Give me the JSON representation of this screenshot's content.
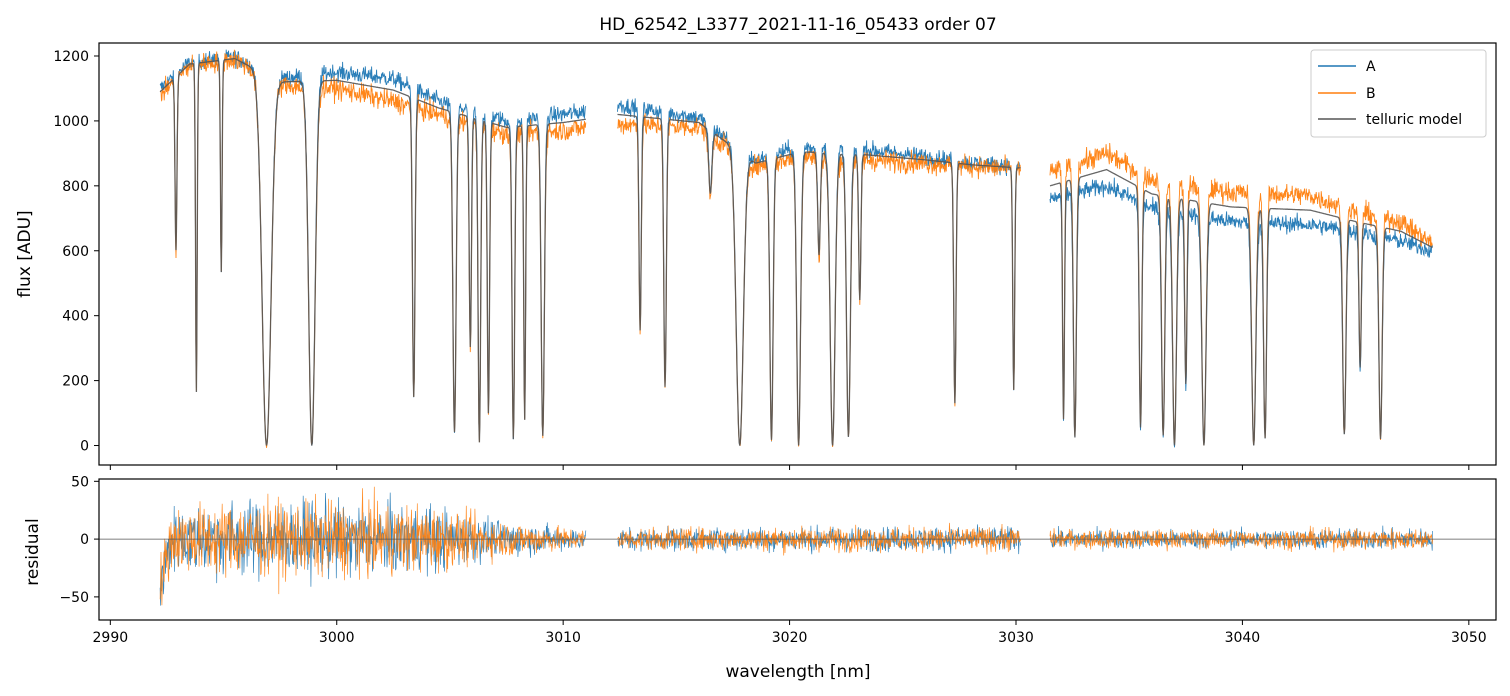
{
  "title": "HD_62542_L3377_2021-11-16_05433  order 07",
  "colors": {
    "A": "#1f77b4",
    "B": "#ff7f0e",
    "model": "#555555"
  },
  "chart_data": [
    {
      "type": "line",
      "panel": "flux",
      "title": "HD_62542_L3377_2021-11-16_05433  order 07",
      "xlabel": "",
      "ylabel": "flux [ADU]",
      "xlim": [
        2989.5,
        3051.2
      ],
      "ylim": [
        -60,
        1240
      ],
      "xticks": [
        2990,
        3000,
        3010,
        3020,
        3030,
        3040,
        3050
      ],
      "yticks": [
        0,
        200,
        400,
        600,
        800,
        1000,
        1200
      ],
      "grid": false,
      "legend": {
        "position": "top-right",
        "entries": [
          "A",
          "B",
          "telluric model"
        ]
      },
      "segments": [
        [
          2992.2,
          3011.0
        ],
        [
          3012.4,
          3030.2
        ],
        [
          3031.5,
          3048.4
        ]
      ],
      "series": [
        {
          "name": "A",
          "color": "#1f77b4",
          "continuum": [
            [
              2992.2,
              1100
            ],
            [
              2993.5,
              1180
            ],
            [
              2995.5,
              1195
            ],
            [
              2997.5,
              1130
            ],
            [
              3000,
              1150
            ],
            [
              3002.5,
              1130
            ],
            [
              3004.5,
              1060
            ],
            [
              3007.5,
              1000
            ],
            [
              3010,
              1020
            ],
            [
              3011,
              1030
            ],
            [
              3012.4,
              1050
            ],
            [
              3016,
              1010
            ],
            [
              3018.5,
              880
            ],
            [
              3020.5,
              920
            ],
            [
              3023.5,
              910
            ],
            [
              3026,
              890
            ],
            [
              3028,
              870
            ],
            [
              3030.2,
              860
            ],
            [
              3031.5,
              760
            ],
            [
              3034,
              800
            ],
            [
              3036,
              730
            ],
            [
              3039.5,
              690
            ],
            [
              3043,
              680
            ],
            [
              3045,
              660
            ],
            [
              3047,
              630
            ],
            [
              3048.4,
              600
            ]
          ]
        },
        {
          "name": "B",
          "color": "#ff7f0e",
          "continuum": [
            [
              2992.2,
              1080
            ],
            [
              2993.5,
              1170
            ],
            [
              2995.5,
              1190
            ],
            [
              2997.5,
              1110
            ],
            [
              3000,
              1100
            ],
            [
              3002.5,
              1060
            ],
            [
              3004.5,
              1020
            ],
            [
              3007.5,
              960
            ],
            [
              3010,
              970
            ],
            [
              3011,
              980
            ],
            [
              3012.4,
              990
            ],
            [
              3016,
              980
            ],
            [
              3018.5,
              860
            ],
            [
              3020.5,
              890
            ],
            [
              3023.5,
              880
            ],
            [
              3026,
              870
            ],
            [
              3028,
              860
            ],
            [
              3030.2,
              850
            ],
            [
              3031.5,
              840
            ],
            [
              3034,
              900
            ],
            [
              3036,
              820
            ],
            [
              3039.5,
              780
            ],
            [
              3043,
              770
            ],
            [
              3045,
              720
            ],
            [
              3047,
              690
            ],
            [
              3048.4,
              620
            ]
          ]
        },
        {
          "name": "telluric model",
          "color": "#555555",
          "continuum": [
            [
              2992.2,
              1090
            ],
            [
              2993.5,
              1175
            ],
            [
              2995.5,
              1192
            ],
            [
              2997.5,
              1120
            ],
            [
              3000,
              1125
            ],
            [
              3002.5,
              1095
            ],
            [
              3004.5,
              1040
            ],
            [
              3007.5,
              980
            ],
            [
              3010,
              995
            ],
            [
              3011,
              1005
            ],
            [
              3012.4,
              1020
            ],
            [
              3016,
              995
            ],
            [
              3018.5,
              870
            ],
            [
              3020.5,
              905
            ],
            [
              3023.5,
              895
            ],
            [
              3026,
              880
            ],
            [
              3028,
              865
            ],
            [
              3030.2,
              855
            ],
            [
              3031.5,
              800
            ],
            [
              3034,
              850
            ],
            [
              3036,
              775
            ],
            [
              3039.5,
              735
            ],
            [
              3043,
              725
            ],
            [
              3045,
              690
            ],
            [
              3047,
              660
            ],
            [
              3048.4,
              610
            ]
          ]
        }
      ],
      "absorption_lines": [
        {
          "x": 2992.9,
          "depth": 0.47,
          "w": 0.06
        },
        {
          "x": 2993.8,
          "depth": 0.86,
          "w": 0.05
        },
        {
          "x": 2994.9,
          "depth": 0.55,
          "w": 0.05
        },
        {
          "x": 2996.9,
          "depth": 1.0,
          "w": 0.28
        },
        {
          "x": 2998.9,
          "depth": 1.0,
          "w": 0.2
        },
        {
          "x": 3003.4,
          "depth": 0.86,
          "w": 0.08
        },
        {
          "x": 3005.2,
          "depth": 0.96,
          "w": 0.1
        },
        {
          "x": 3005.9,
          "depth": 0.7,
          "w": 0.07
        },
        {
          "x": 3006.3,
          "depth": 0.99,
          "w": 0.08
        },
        {
          "x": 3006.7,
          "depth": 0.9,
          "w": 0.07
        },
        {
          "x": 3007.8,
          "depth": 0.98,
          "w": 0.08
        },
        {
          "x": 3008.3,
          "depth": 0.92,
          "w": 0.06
        },
        {
          "x": 3009.1,
          "depth": 0.97,
          "w": 0.1
        },
        {
          "x": 3013.4,
          "depth": 0.65,
          "w": 0.07
        },
        {
          "x": 3014.5,
          "depth": 0.82,
          "w": 0.08
        },
        {
          "x": 3016.5,
          "depth": 0.2,
          "w": 0.1
        },
        {
          "x": 3017.8,
          "depth": 1.0,
          "w": 0.22
        },
        {
          "x": 3019.2,
          "depth": 0.98,
          "w": 0.1
        },
        {
          "x": 3020.4,
          "depth": 1.0,
          "w": 0.12
        },
        {
          "x": 3021.3,
          "depth": 0.35,
          "w": 0.08
        },
        {
          "x": 3021.9,
          "depth": 1.0,
          "w": 0.15
        },
        {
          "x": 3022.6,
          "depth": 0.97,
          "w": 0.12
        },
        {
          "x": 3023.1,
          "depth": 0.5,
          "w": 0.07
        },
        {
          "x": 3027.3,
          "depth": 0.85,
          "w": 0.07
        },
        {
          "x": 3029.9,
          "depth": 0.8,
          "w": 0.06
        },
        {
          "x": 3032.1,
          "depth": 0.9,
          "w": 0.06
        },
        {
          "x": 3032.6,
          "depth": 0.97,
          "w": 0.09
        },
        {
          "x": 3035.5,
          "depth": 0.93,
          "w": 0.08
        },
        {
          "x": 3036.5,
          "depth": 0.96,
          "w": 0.1
        },
        {
          "x": 3037.0,
          "depth": 1.0,
          "w": 0.12
        },
        {
          "x": 3037.5,
          "depth": 0.75,
          "w": 0.07
        },
        {
          "x": 3038.3,
          "depth": 1.0,
          "w": 0.13
        },
        {
          "x": 3040.5,
          "depth": 1.0,
          "w": 0.13
        },
        {
          "x": 3041.0,
          "depth": 0.97,
          "w": 0.09
        },
        {
          "x": 3044.5,
          "depth": 0.95,
          "w": 0.1
        },
        {
          "x": 3045.2,
          "depth": 0.65,
          "w": 0.07
        },
        {
          "x": 3046.1,
          "depth": 0.97,
          "w": 0.1
        }
      ]
    },
    {
      "type": "line",
      "panel": "residual",
      "xlabel": "wavelength [nm]",
      "ylabel": "residual",
      "xlim": [
        2989.5,
        3051.2
      ],
      "ylim": [
        -70,
        52
      ],
      "xticks": [
        2990,
        3000,
        3010,
        3020,
        3030,
        3040,
        3050
      ],
      "yticks": [
        -50,
        0,
        50
      ],
      "zero_line": 0,
      "grid": false,
      "segments": [
        [
          2992.2,
          3011.0
        ],
        [
          3012.4,
          3030.2
        ],
        [
          3031.5,
          3048.4
        ]
      ],
      "noise_envelope": [
        [
          2992.2,
          45
        ],
        [
          2995,
          55
        ],
        [
          3000,
          55
        ],
        [
          3004,
          50
        ],
        [
          3007,
          28
        ],
        [
          3011,
          14
        ],
        [
          3012.4,
          16
        ],
        [
          3020,
          18
        ],
        [
          3030.2,
          18
        ],
        [
          3031.5,
          14
        ],
        [
          3040,
          14
        ],
        [
          3048.4,
          16
        ]
      ],
      "series": [
        {
          "name": "A",
          "color": "#1f77b4"
        },
        {
          "name": "B",
          "color": "#ff7f0e"
        }
      ]
    }
  ]
}
